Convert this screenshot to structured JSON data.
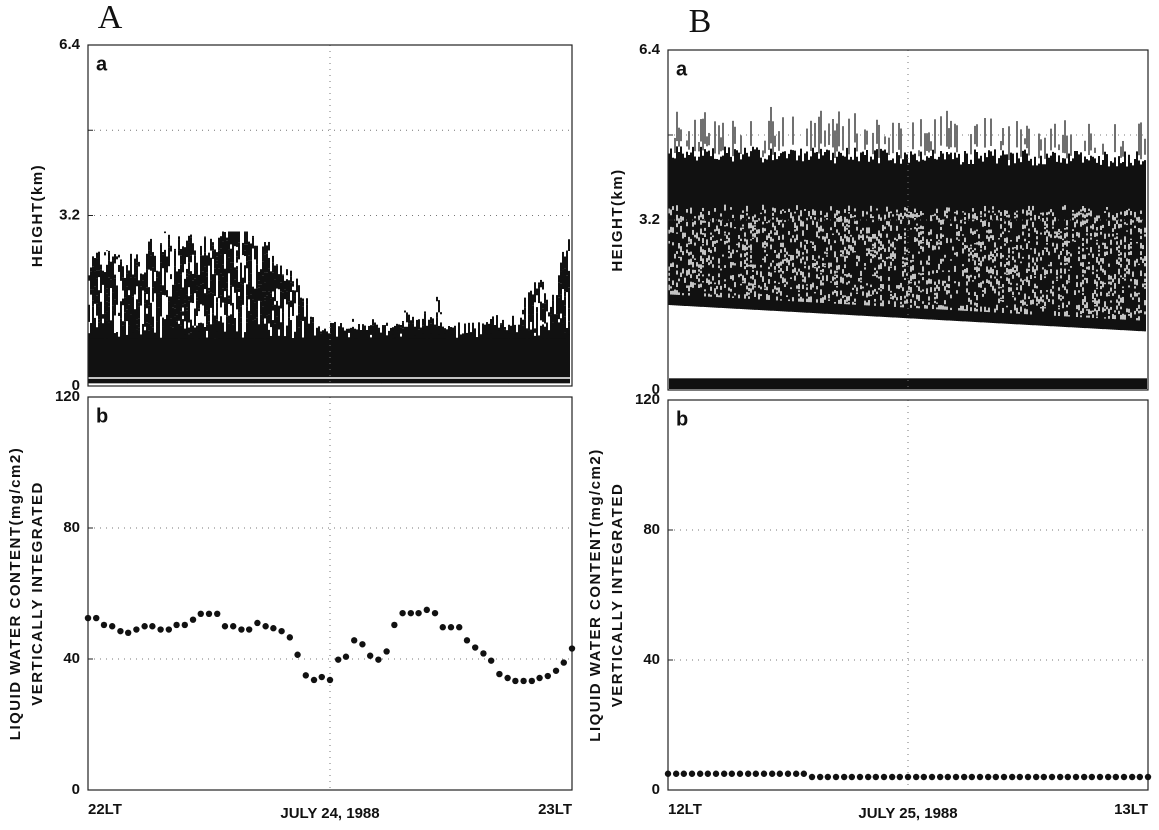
{
  "columns": [
    {
      "label": "A"
    },
    {
      "label": "B"
    }
  ],
  "chart_data": [
    {
      "type": "image",
      "panel_label": "a",
      "ylabel": [
        "HEIGHT(km)"
      ],
      "ylim": [
        0,
        6.4
      ],
      "yticks": [
        0,
        3.2,
        {
          "value": 4.8,
          "label": null
        },
        6.4
      ],
      "xlim": [
        22,
        23
      ],
      "xticks": [
        {
          "value": 22.5,
          "label": null
        }
      ],
      "grid": true
    },
    {
      "type": "scatter",
      "panel_label": "b",
      "ylabel": [
        "VERTICALLY INTEGRATED",
        "LIQUID WATER CONTENT(mg/cm2)"
      ],
      "xlabel": "JULY 24, 1988",
      "ylim": [
        0,
        120
      ],
      "yticks": [
        0,
        40,
        80,
        120
      ],
      "xlim": [
        22,
        23
      ],
      "xticks": [
        {
          "value": 22,
          "label": "22LT"
        },
        {
          "value": 22.5,
          "label": null
        },
        {
          "value": 23,
          "label": "23LT"
        }
      ],
      "grid": true,
      "color": "#111",
      "x": [
        22,
        22.017,
        22.033,
        22.05,
        22.067,
        22.083,
        22.1,
        22.117,
        22.133,
        22.15,
        22.167,
        22.183,
        22.2,
        22.217,
        22.233,
        22.25,
        22.267,
        22.283,
        22.3,
        22.317,
        22.333,
        22.35,
        22.367,
        22.383,
        22.4,
        22.417,
        22.433,
        22.45,
        22.467,
        22.483,
        22.5,
        22.517,
        22.533,
        22.55,
        22.567,
        22.583,
        22.6,
        22.617,
        22.633,
        22.65,
        22.667,
        22.683,
        22.7,
        22.717,
        22.733,
        22.75,
        22.767,
        22.783,
        22.8,
        22.817,
        22.833,
        22.85,
        22.867,
        22.883,
        22.9,
        22.917,
        22.933,
        22.95,
        22.967,
        22.983,
        23
      ],
      "values": [
        52.5,
        52.5,
        50.4,
        50,
        48.5,
        48,
        49,
        50,
        50,
        49,
        49,
        50.4,
        50.4,
        52,
        53.8,
        53.8,
        53.8,
        50,
        50,
        49,
        49,
        51,
        50,
        49.4,
        48.5,
        46.6,
        41.3,
        35,
        33.6,
        34.5,
        33.6,
        39.8,
        40.7,
        45.7,
        44.5,
        41,
        39.8,
        42.3,
        50.4,
        54,
        54,
        54,
        55,
        54,
        49.7,
        49.7,
        49.7,
        45.7,
        43.5,
        41.7,
        39.5,
        35.4,
        34.2,
        33.3,
        33.3,
        33.3,
        34.2,
        34.8,
        36.4,
        38.9,
        43.2
      ]
    },
    {
      "type": "image",
      "panel_label": "a",
      "ylabel": [
        "HEIGHT(km)"
      ],
      "ylim": [
        0,
        6.4
      ],
      "yticks": [
        0,
        3.2,
        {
          "value": 4.8,
          "label": null
        },
        6.4
      ],
      "xlim": [
        12,
        13
      ],
      "xticks": [
        {
          "value": 12.5,
          "label": null
        }
      ],
      "grid": true
    },
    {
      "type": "scatter",
      "panel_label": "b",
      "ylabel": [
        "VERTICALLY INTEGRATED",
        "LIQUID WATER CONTENT(mg/cm2)"
      ],
      "xlabel": "JULY 25, 1988",
      "ylim": [
        0,
        120
      ],
      "yticks": [
        0,
        40,
        80,
        120
      ],
      "xlim": [
        12,
        13
      ],
      "xticks": [
        {
          "value": 12,
          "label": "12LT"
        },
        {
          "value": 12.5,
          "label": null
        },
        {
          "value": 13,
          "label": "13LT"
        }
      ],
      "grid": true,
      "color": "#111",
      "x": [
        12,
        12.017,
        12.033,
        12.05,
        12.067,
        12.083,
        12.1,
        12.117,
        12.133,
        12.15,
        12.167,
        12.183,
        12.2,
        12.217,
        12.233,
        12.25,
        12.267,
        12.283,
        12.3,
        12.317,
        12.333,
        12.35,
        12.367,
        12.383,
        12.4,
        12.417,
        12.433,
        12.45,
        12.467,
        12.483,
        12.5,
        12.517,
        12.533,
        12.55,
        12.567,
        12.583,
        12.6,
        12.617,
        12.633,
        12.65,
        12.667,
        12.683,
        12.7,
        12.717,
        12.733,
        12.75,
        12.767,
        12.783,
        12.8,
        12.817,
        12.833,
        12.85,
        12.867,
        12.883,
        12.9,
        12.917,
        12.933,
        12.95,
        12.967,
        12.983,
        13
      ],
      "values": [
        5,
        5,
        5,
        5,
        5,
        5,
        5,
        5,
        5,
        5,
        5,
        5,
        5,
        5,
        5,
        5,
        5,
        5,
        4,
        4,
        4,
        4,
        4,
        4,
        4,
        4,
        4,
        4,
        4,
        4,
        4,
        4,
        4,
        4,
        4,
        4,
        4,
        4,
        4,
        4,
        4,
        4,
        4,
        4,
        4,
        4,
        4,
        4,
        4,
        4,
        4,
        4,
        4,
        4,
        4,
        4,
        4,
        4,
        4,
        4,
        4
      ]
    }
  ]
}
